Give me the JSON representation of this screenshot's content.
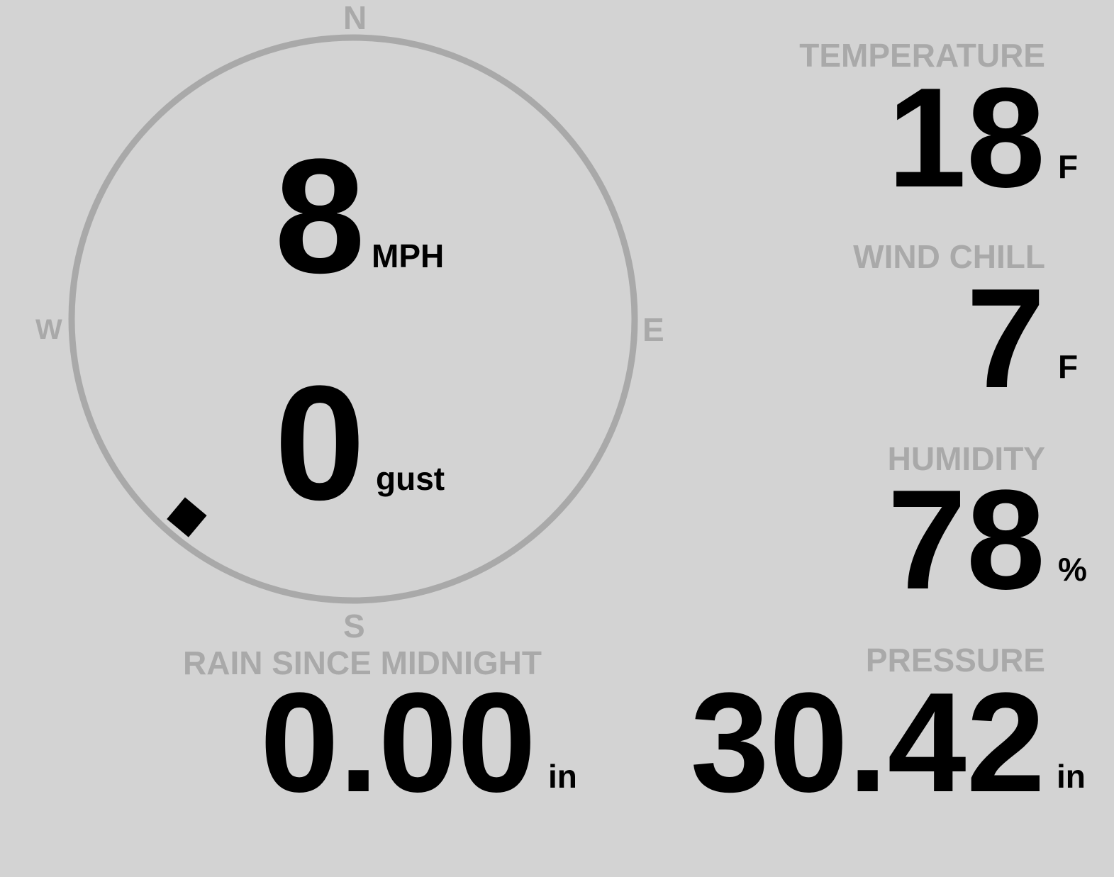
{
  "compass": {
    "north": "N",
    "south": "S",
    "east": "E",
    "west": "W",
    "wind_direction_degrees": 220,
    "ring_color": "#a9a9a9",
    "indicator_color": "#000000"
  },
  "wind": {
    "speed": "8",
    "speed_unit": "MPH",
    "gust": "0",
    "gust_label": "gust"
  },
  "temperature": {
    "label": "TEMPERATURE",
    "value": "18",
    "unit": "F"
  },
  "wind_chill": {
    "label": "WIND CHILL",
    "value": "7",
    "unit": "F"
  },
  "humidity": {
    "label": "HUMIDITY",
    "value": "78",
    "unit": "%"
  },
  "rain": {
    "label": "RAIN SINCE MIDNIGHT",
    "value": "0.00",
    "unit": "in"
  },
  "pressure": {
    "label": "PRESSURE",
    "value": "30.42",
    "unit": "in"
  },
  "colors": {
    "background": "#d3d3d3",
    "label": "#a9a9a9",
    "value": "#000000"
  }
}
